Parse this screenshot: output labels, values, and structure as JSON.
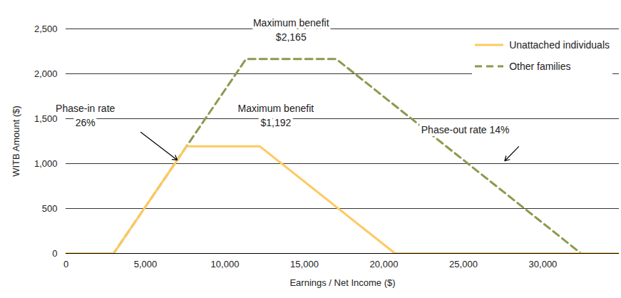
{
  "chart_data": {
    "type": "line",
    "x_label": "Earnings / Net Income ($)",
    "y_label": "WITB Amount ($)",
    "xlim": [
      0,
      34800
    ],
    "ylim": [
      0,
      2500
    ],
    "xticks": [
      0,
      {
        "value": 5000,
        "label": "5,000"
      },
      {
        "value": 10000,
        "label": "10,000"
      },
      {
        "value": 15000,
        "label": "15,000"
      },
      {
        "value": 20000,
        "label": "20,000"
      },
      {
        "value": 25000,
        "label": "25,000"
      },
      {
        "value": 30000,
        "label": "30,000"
      }
    ],
    "yticks": [
      0,
      500,
      {
        "value": 1000,
        "label": "1,000"
      },
      {
        "value": 1500,
        "label": "1,500"
      },
      {
        "value": 2000,
        "label": "2,000"
      },
      {
        "value": 2500,
        "label": "2,500"
      }
    ],
    "grid": "y",
    "legend": "top-right",
    "series": [
      {
        "name": "Unattached individuals",
        "color": "#FFC95F",
        "line_style": "solid",
        "x": [
          0,
          3000,
          7585,
          12200,
          20700,
          34800
        ],
        "values": [
          0,
          0,
          1192,
          1192,
          0,
          0
        ]
      },
      {
        "name": "Other families",
        "color": "#8A9A4E",
        "line_style": "dashed",
        "x": [
          0,
          3000,
          11327,
          17000,
          32400,
          34800
        ],
        "values": [
          0,
          0,
          2165,
          2165,
          0,
          0
        ]
      }
    ],
    "annotations": [
      {
        "text": "Maximum benefit\n$2,165",
        "x": 14160,
        "y": 2500
      },
      {
        "text": "Maximum benefit\n$1,192",
        "x": 13200,
        "y": 1550
      },
      {
        "text": "Phase-in rate\n26%",
        "x": 1220,
        "y": 1550,
        "arrow_from": [
          4710,
          1350
        ],
        "arrow_to": [
          7000,
          1040
        ]
      },
      {
        "text": "Phase-out rate 14%",
        "x": 25120,
        "y": 1390,
        "arrow_from": [
          28480,
          1190
        ],
        "arrow_to": [
          27600,
          1030
        ]
      }
    ]
  }
}
